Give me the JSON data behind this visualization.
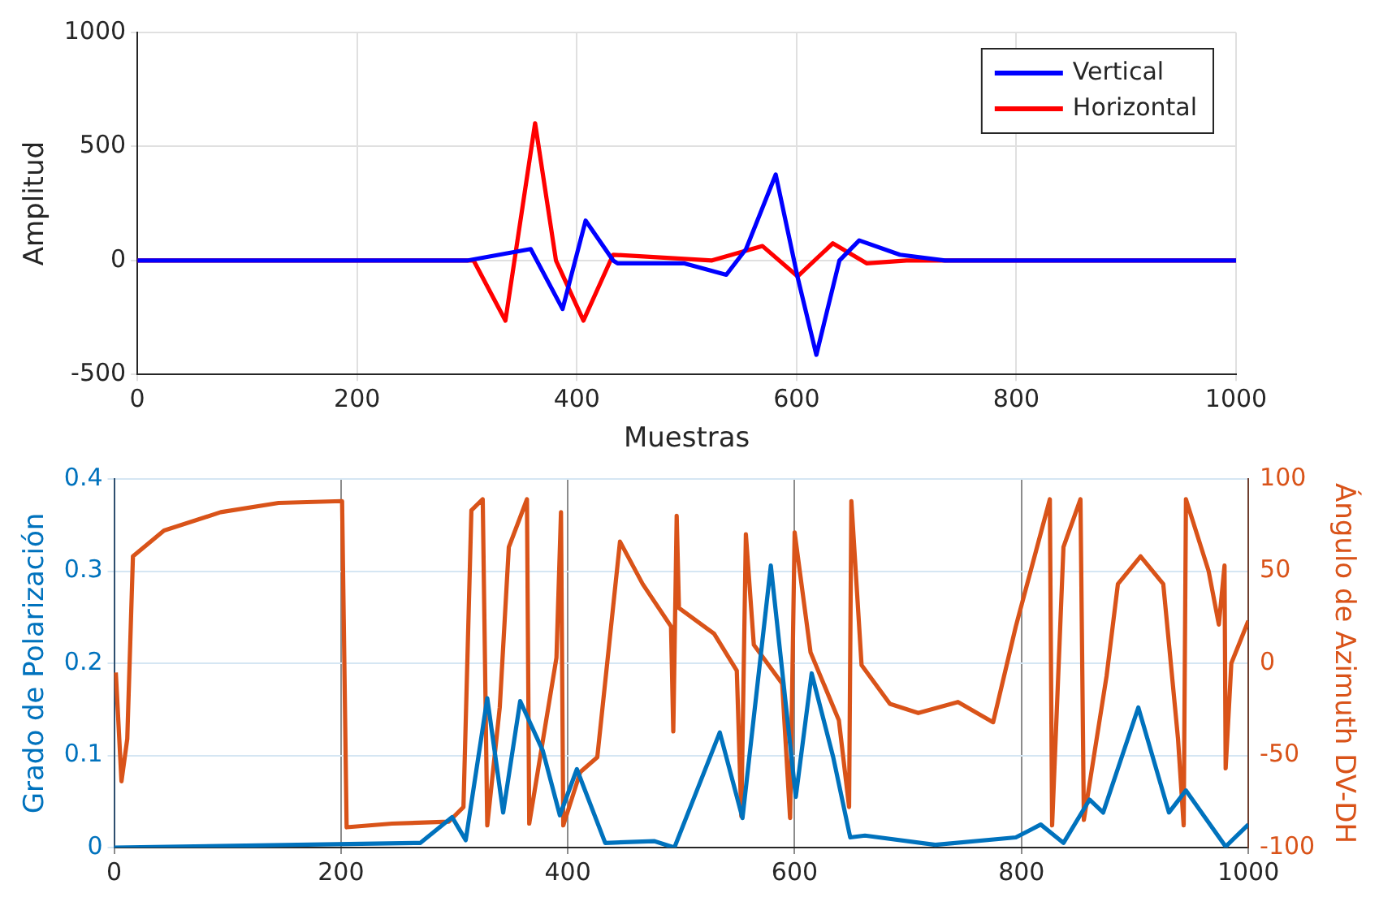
{
  "chart_data": [
    {
      "type": "line",
      "xlabel": "Muestras",
      "ylabel": "Amplitud",
      "xlim": [
        0,
        1000
      ],
      "xticks": [
        0,
        200,
        400,
        600,
        800,
        1000
      ],
      "ylim": [
        -500,
        1000
      ],
      "yticks": [
        -500,
        0,
        500,
        1000
      ],
      "grid": true,
      "legend": "top right",
      "marker": "none",
      "line_style": "solid",
      "series": [
        {
          "name": "Vertical",
          "color": "#0000ff",
          "x": [
            0,
            301,
            358,
            387,
            408,
            433,
            437,
            498,
            536,
            554,
            581,
            601,
            618,
            639,
            657,
            694,
            735,
            1000
          ],
          "values": [
            0,
            0,
            50,
            -213,
            175,
            0,
            -13,
            -13,
            -63,
            50,
            377,
            -75,
            -414,
            0,
            88,
            25,
            0,
            0
          ]
        },
        {
          "name": "Horizontal",
          "color": "#ff0000",
          "x": [
            0,
            306,
            335,
            362,
            381,
            406,
            433,
            523,
            569,
            601,
            633,
            664,
            700,
            1000
          ],
          "values": [
            0,
            0,
            -264,
            602,
            0,
            -264,
            25,
            0,
            63,
            -70,
            75,
            -13,
            0,
            0
          ]
        }
      ]
    },
    {
      "type": "line",
      "ylabel": "Grado de Polarización",
      "y2label": "Ángulo de Azimuth DV-DH",
      "xlim": [
        0,
        1000
      ],
      "xticks": [
        0,
        200,
        400,
        600,
        800,
        1000
      ],
      "ylim": [
        0,
        0.4
      ],
      "yticks": [
        0,
        0.1,
        0.2,
        0.3,
        0.4
      ],
      "y2lim": [
        -100,
        100
      ],
      "y2ticks": [
        -100,
        -50,
        0,
        50,
        100
      ],
      "grid": true,
      "legend": false,
      "marker": "none",
      "line_style": "solid",
      "series": [
        {
          "color": "#0072bd",
          "x": [
            0,
            270,
            298,
            310,
            329,
            343,
            358,
            378,
            393,
            408,
            433,
            476,
            494,
            534,
            554,
            579,
            601,
            615,
            634,
            649,
            662,
            724,
            795,
            817,
            837,
            860,
            872,
            903,
            930,
            945,
            980,
            1000
          ],
          "values": [
            0,
            0.005,
            0.033,
            0.008,
            0.162,
            0.038,
            0.159,
            0.105,
            0.035,
            0.085,
            0.005,
            0.007,
            0,
            0.125,
            0.032,
            0.306,
            0.055,
            0.189,
            0.098,
            0.011,
            0.013,
            0.003,
            0.011,
            0.025,
            0.005,
            0.052,
            0.038,
            0.152,
            0.038,
            0.062,
            0.001,
            0.025
          ]
        },
        {
          "color": "#d95319",
          "axis": "y2",
          "x": [
            1.5,
            6.5,
            11.6,
            16.6,
            44,
            94,
            145,
            201,
            205,
            245,
            295,
            308,
            315,
            325,
            329,
            340,
            348,
            364,
            366,
            390,
            394,
            396,
            411,
            426,
            446,
            466,
            491,
            493,
            496,
            498,
            529,
            549,
            553,
            557,
            564,
            589,
            596,
            600,
            614,
            639,
            648,
            650,
            659,
            684,
            709,
            744,
            775,
            795,
            825,
            827,
            837,
            852,
            855,
            875,
            885,
            905,
            925,
            938,
            943,
            945,
            965,
            974,
            979,
            980,
            985,
            1000
          ],
          "values": [
            -5,
            -64,
            -41,
            58,
            72,
            82,
            87,
            88,
            -89,
            -87,
            -86,
            -78,
            83,
            89,
            -88,
            -24,
            63,
            89,
            -87,
            3,
            82,
            -88,
            -59,
            -51,
            66,
            43,
            20,
            -37,
            80,
            30,
            16,
            -4,
            -83,
            70,
            10,
            -11,
            -84,
            71,
            6,
            -31,
            -78,
            88,
            -1,
            -22,
            -27,
            -21,
            -32,
            20,
            89,
            -88,
            63,
            89,
            -85,
            -7,
            43,
            58,
            43,
            -41,
            -88,
            89,
            50,
            21,
            53,
            -57,
            0,
            23
          ]
        }
      ]
    }
  ]
}
